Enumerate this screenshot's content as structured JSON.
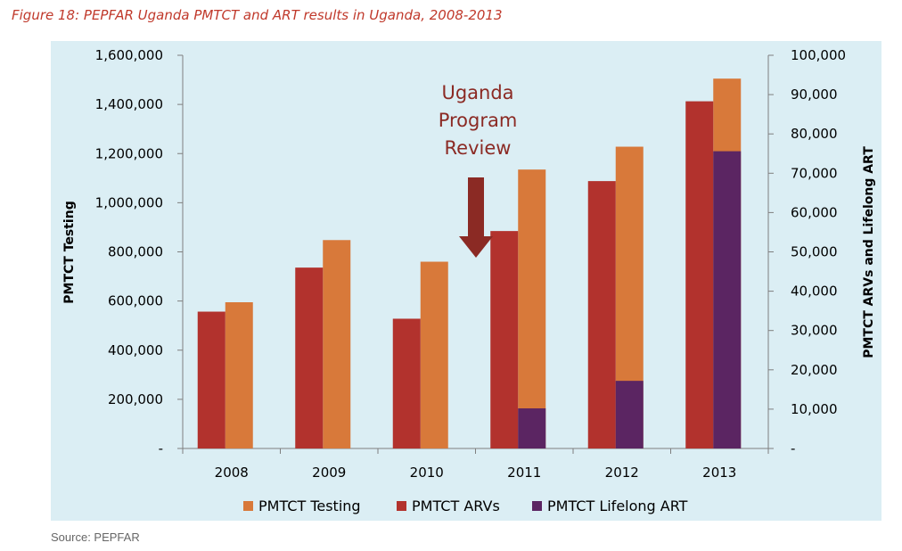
{
  "figure": {
    "caption": "Figure 18: PEPFAR Uganda PMTCT and ART results in Uganda, 2008-2013",
    "source": "Source: PEPFAR"
  },
  "colors": {
    "background": "#dbeef4",
    "testing": "#d8793a",
    "arvs": "#b2322d",
    "lifelong": "#5b2562",
    "arrow": "#8b2a24"
  },
  "chart_data": {
    "type": "bar",
    "categories": [
      "2008",
      "2009",
      "2010",
      "2011",
      "2012",
      "2013"
    ],
    "series": [
      {
        "name": "PMTCT Testing",
        "axis": "left",
        "values": [
          595000,
          848000,
          760000,
          1135000,
          1228000,
          1505000
        ]
      },
      {
        "name": "PMTCT ARVs",
        "axis": "right",
        "values": [
          34800,
          46000,
          33000,
          55300,
          68000,
          88300
        ]
      },
      {
        "name": "PMTCT Lifelong ART",
        "axis": "right",
        "values": [
          null,
          null,
          null,
          10200,
          17200,
          75600
        ]
      }
    ],
    "ylabel": "PMTCT Testing",
    "y2label": "PMTCT ARVs and Lifelong ART",
    "ylim": [
      0,
      1600000
    ],
    "y2lim": [
      0,
      100000
    ],
    "yticks": [
      "-",
      "200,000",
      "400,000",
      "600,000",
      "800,000",
      "1,000,000",
      "1,200,000",
      "1,400,000",
      "1,600,000"
    ],
    "y2ticks": [
      "-",
      "10,000",
      "20,000",
      "30,000",
      "40,000",
      "50,000",
      "60,000",
      "70,000",
      "80,000",
      "90,000",
      "100,000"
    ],
    "annotation": {
      "lines": [
        "Uganda",
        "Program",
        "Review"
      ],
      "at_category": "2011"
    },
    "legend_position": "bottom",
    "grid": false
  }
}
